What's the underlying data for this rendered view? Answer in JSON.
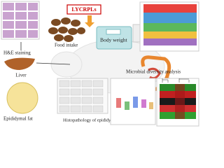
{
  "labels": {
    "treatment": "LYCRPLs",
    "food_intake": "Food intake",
    "body_weight": "Body weight",
    "he_staining": "H&E staining",
    "liver": "Liver",
    "microbial": "Microbial diversity analysis",
    "epididymal_fat": "Epididymal fat",
    "histopathology": "Histopathology of epididymal fat"
  }
}
